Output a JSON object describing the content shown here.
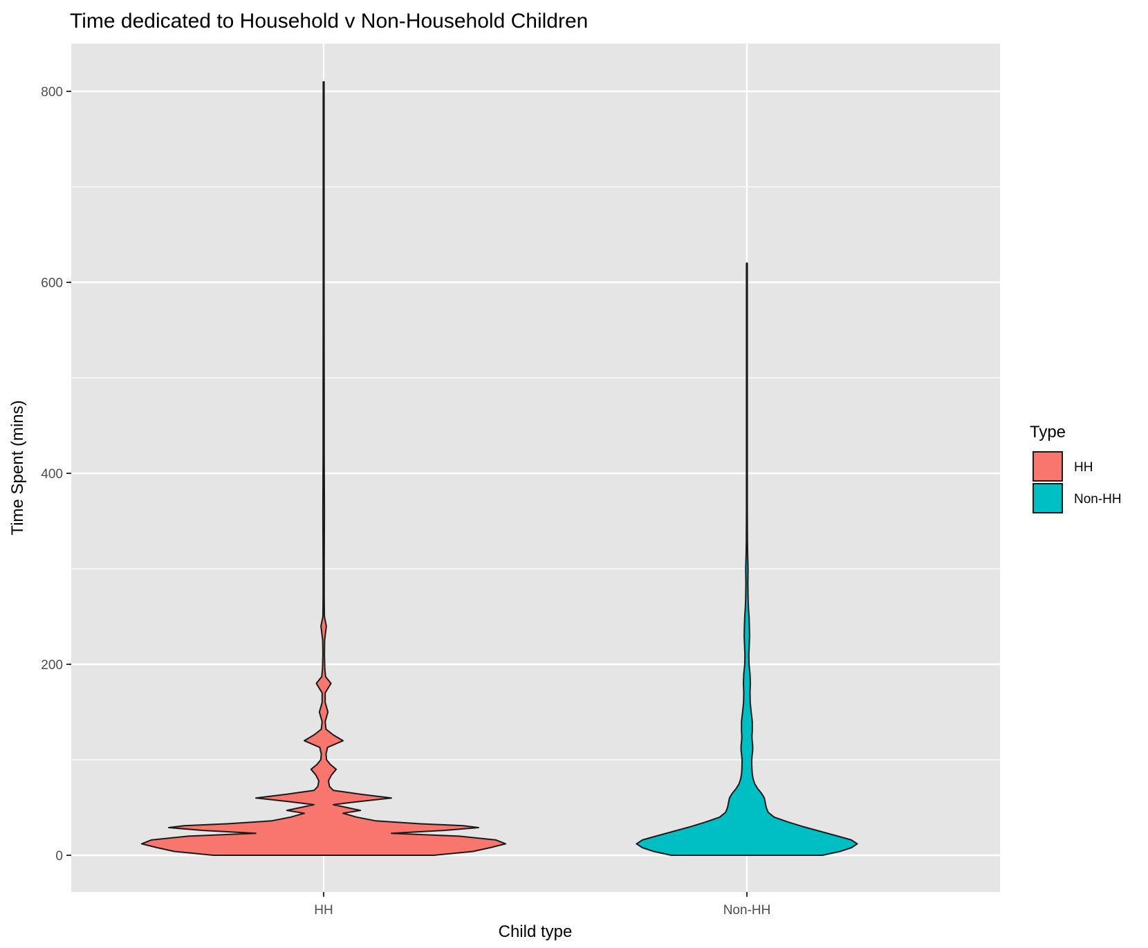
{
  "chart_data": {
    "type": "violin",
    "title": "Time dedicated to Household v Non-Household Children",
    "xlabel": "Child type",
    "ylabel": "Time Spent (mins)",
    "categories": [
      "HH",
      "Non-HH"
    ],
    "ylim": [
      -38,
      850
    ],
    "yticks": [
      0,
      200,
      400,
      600,
      800
    ],
    "grid": true,
    "legend": {
      "title": "Type",
      "position": "right",
      "entries": [
        {
          "label": "HH",
          "color": "#F8766D"
        },
        {
          "label": "Non-HH",
          "color": "#00BFC4"
        }
      ]
    },
    "colors": {
      "panel": "#e5e5e5",
      "grid": "#ffffff",
      "outline": "#1a1a1a",
      "tick_text": "#4d4d4d"
    },
    "series": [
      {
        "name": "HH",
        "color": "#F8766D",
        "density_profile": [
          [
            0,
            0.57
          ],
          [
            4,
            0.77
          ],
          [
            8,
            0.86
          ],
          [
            12,
            0.94
          ],
          [
            16,
            0.89
          ],
          [
            20,
            0.7
          ],
          [
            23,
            0.35
          ],
          [
            26,
            0.62
          ],
          [
            29,
            0.8
          ],
          [
            31,
            0.72
          ],
          [
            33,
            0.5
          ],
          [
            36,
            0.27
          ],
          [
            40,
            0.17
          ],
          [
            44,
            0.1
          ],
          [
            47,
            0.19
          ],
          [
            50,
            0.12
          ],
          [
            53,
            0.05
          ],
          [
            56,
            0.17
          ],
          [
            60,
            0.35
          ],
          [
            64,
            0.19
          ],
          [
            68,
            0.05
          ],
          [
            72,
            0.03
          ],
          [
            78,
            0.025
          ],
          [
            84,
            0.04
          ],
          [
            90,
            0.065
          ],
          [
            95,
            0.035
          ],
          [
            100,
            0.015
          ],
          [
            106,
            0.012
          ],
          [
            113,
            0.02
          ],
          [
            120,
            0.1
          ],
          [
            126,
            0.05
          ],
          [
            132,
            0.012
          ],
          [
            140,
            0.008
          ],
          [
            150,
            0.022
          ],
          [
            160,
            0.008
          ],
          [
            170,
            0.008
          ],
          [
            180,
            0.038
          ],
          [
            187,
            0.01
          ],
          [
            195,
            0.006
          ],
          [
            210,
            0.004
          ],
          [
            225,
            0.005
          ],
          [
            240,
            0.014
          ],
          [
            250,
            0.004
          ],
          [
            270,
            0.003
          ],
          [
            300,
            0.003
          ],
          [
            360,
            0.004
          ],
          [
            420,
            0.003
          ],
          [
            480,
            0.003
          ],
          [
            600,
            0.002
          ],
          [
            810,
            0.002
          ]
        ]
      },
      {
        "name": "Non-HH",
        "color": "#00BFC4",
        "density_profile": [
          [
            0,
            0.39
          ],
          [
            4,
            0.48
          ],
          [
            8,
            0.54
          ],
          [
            12,
            0.57
          ],
          [
            16,
            0.54
          ],
          [
            20,
            0.47
          ],
          [
            25,
            0.38
          ],
          [
            30,
            0.29
          ],
          [
            35,
            0.21
          ],
          [
            40,
            0.14
          ],
          [
            45,
            0.11
          ],
          [
            50,
            0.1
          ],
          [
            55,
            0.095
          ],
          [
            60,
            0.09
          ],
          [
            65,
            0.075
          ],
          [
            70,
            0.055
          ],
          [
            75,
            0.04
          ],
          [
            80,
            0.032
          ],
          [
            85,
            0.028
          ],
          [
            90,
            0.026
          ],
          [
            95,
            0.025
          ],
          [
            100,
            0.025
          ],
          [
            105,
            0.027
          ],
          [
            110,
            0.03
          ],
          [
            115,
            0.03
          ],
          [
            120,
            0.027
          ],
          [
            125,
            0.026
          ],
          [
            130,
            0.028
          ],
          [
            140,
            0.028
          ],
          [
            150,
            0.022
          ],
          [
            160,
            0.017
          ],
          [
            170,
            0.016
          ],
          [
            180,
            0.018
          ],
          [
            190,
            0.016
          ],
          [
            200,
            0.011
          ],
          [
            210,
            0.01
          ],
          [
            220,
            0.012
          ],
          [
            230,
            0.014
          ],
          [
            240,
            0.013
          ],
          [
            250,
            0.011
          ],
          [
            260,
            0.008
          ],
          [
            270,
            0.006
          ],
          [
            285,
            0.005
          ],
          [
            300,
            0.006
          ],
          [
            315,
            0.004
          ],
          [
            330,
            0.003
          ],
          [
            360,
            0.002
          ],
          [
            420,
            0.002
          ],
          [
            480,
            0.002
          ],
          [
            620,
            0.002
          ]
        ]
      }
    ]
  }
}
